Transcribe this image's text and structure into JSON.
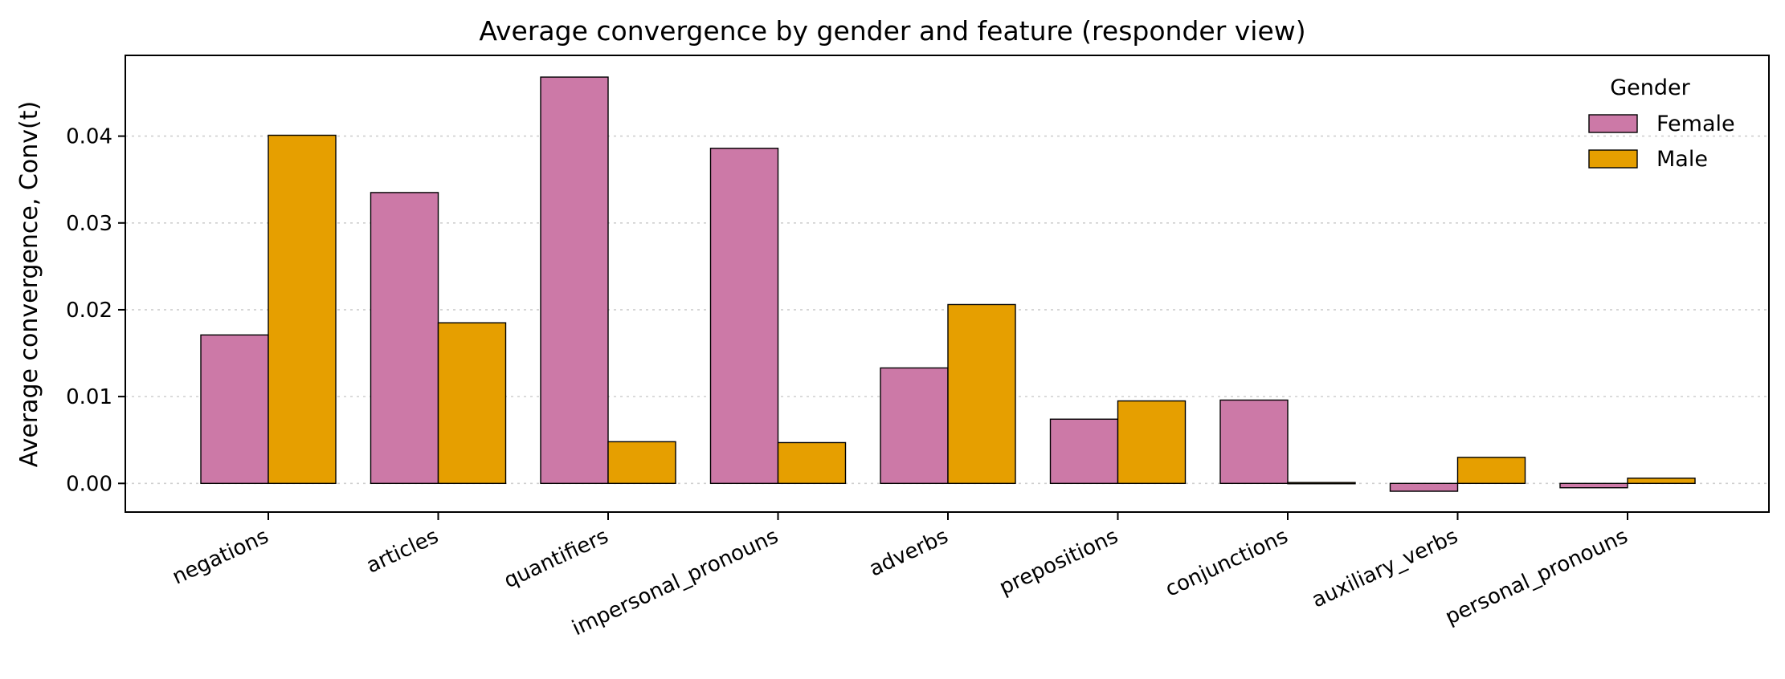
{
  "chart_data": {
    "type": "bar",
    "title": "Average convergence by gender and feature (responder view)",
    "xlabel": "",
    "ylabel": "Average convergence, Conv(t)",
    "categories": [
      "negations",
      "articles",
      "quantifiers",
      "impersonal_pronouns",
      "adverbs",
      "prepositions",
      "conjunctions",
      "auxiliary_verbs",
      "personal_pronouns"
    ],
    "series": [
      {
        "name": "Female",
        "color": "#cc79a7",
        "values": [
          0.0171,
          0.0335,
          0.0468,
          0.0386,
          0.0133,
          0.0074,
          0.0096,
          -0.0009,
          -0.0005
        ]
      },
      {
        "name": "Male",
        "color": "#e69f00",
        "values": [
          0.0401,
          0.0185,
          0.0048,
          0.0047,
          0.0206,
          0.0095,
          0.0001,
          0.003,
          0.0006
        ]
      }
    ],
    "ylim": [
      -0.0033,
      0.0493
    ],
    "yticks": [
      0.0,
      0.01,
      0.02,
      0.03,
      0.04
    ],
    "ytick_labels": [
      "0.00",
      "0.01",
      "0.02",
      "0.03",
      "0.04"
    ],
    "grid": "y-dotted",
    "legend": {
      "title": "Gender",
      "placement": "top-right"
    }
  }
}
